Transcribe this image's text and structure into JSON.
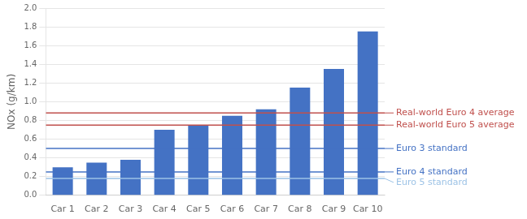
{
  "chart_data": {
    "type": "bar",
    "categories": [
      "Car 1",
      "Car 2",
      "Car 3",
      "Car 4",
      "Car 5",
      "Car 6",
      "Car 7",
      "Car 8",
      "Car 9",
      "Car 10"
    ],
    "values": [
      0.3,
      0.35,
      0.38,
      0.7,
      0.75,
      0.85,
      0.92,
      1.15,
      1.35,
      1.75
    ],
    "color": "#4472C4",
    "ylabel": "NOx (g/km)",
    "ylim": [
      0.0,
      2.0
    ],
    "yticks": [
      {
        "value": 0.0,
        "label": "0.0"
      },
      0.2,
      0.4,
      0.6,
      0.8,
      {
        "value": 1.0,
        "label": "1.0"
      },
      1.2,
      1.4,
      1.6,
      1.8,
      {
        "value": 2.0,
        "label": "2.0"
      }
    ],
    "grid": true,
    "annotations": [
      {
        "y": 0.88,
        "color": "#C0504D",
        "label": "Real-world Euro 4 average"
      },
      {
        "y": 0.75,
        "color": "#C0504D",
        "label": "Real-world Euro 5 average"
      },
      {
        "y": 0.5,
        "color": "#4472C4",
        "label": "Euro 3 standard"
      },
      {
        "y": 0.25,
        "color": "#4472C4",
        "label": "Euro 4 standard"
      },
      {
        "y": 0.18,
        "color": "#9DC3E6",
        "label": "Euro 5 standard"
      }
    ]
  }
}
